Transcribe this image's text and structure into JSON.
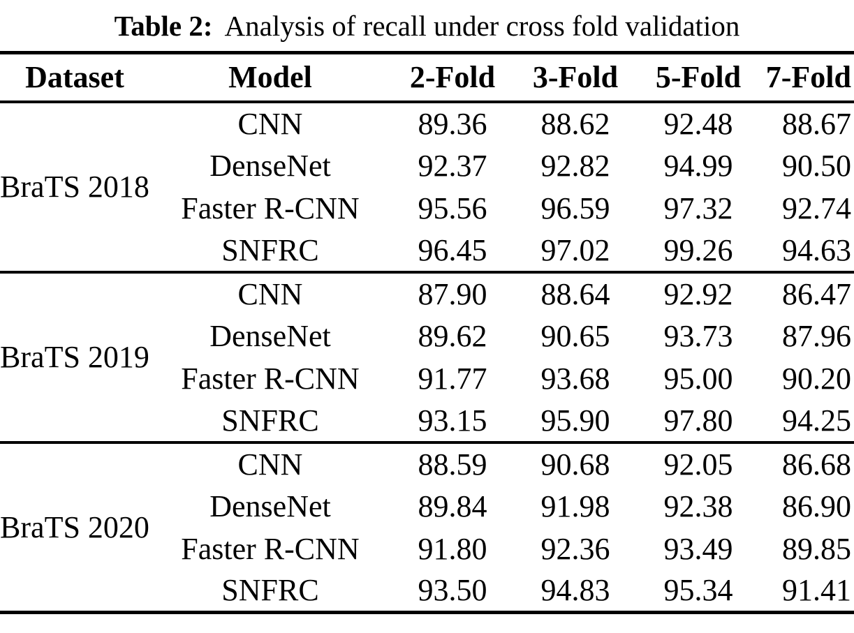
{
  "caption": {
    "label": "Table 2:",
    "text": "Analysis of recall under cross fold validation"
  },
  "chart_data": {
    "type": "table",
    "title": "Table 2: Analysis of recall under cross fold validation",
    "columns": [
      "Dataset",
      "Model",
      "2-Fold",
      "3-Fold",
      "5-Fold",
      "7-Fold"
    ],
    "groups": [
      {
        "dataset": "BraTS 2018",
        "rows": [
          {
            "model": "CNN",
            "values": [
              "89.36",
              "88.62",
              "92.48",
              "88.67"
            ]
          },
          {
            "model": "DenseNet",
            "values": [
              "92.37",
              "92.82",
              "94.99",
              "90.50"
            ]
          },
          {
            "model": "Faster R-CNN",
            "values": [
              "95.56",
              "96.59",
              "97.32",
              "92.74"
            ]
          },
          {
            "model": "SNFRC",
            "values": [
              "96.45",
              "97.02",
              "99.26",
              "94.63"
            ]
          }
        ]
      },
      {
        "dataset": "BraTS 2019",
        "rows": [
          {
            "model": "CNN",
            "values": [
              "87.90",
              "88.64",
              "92.92",
              "86.47"
            ]
          },
          {
            "model": "DenseNet",
            "values": [
              "89.62",
              "90.65",
              "93.73",
              "87.96"
            ]
          },
          {
            "model": "Faster R-CNN",
            "values": [
              "91.77",
              "93.68",
              "95.00",
              "90.20"
            ]
          },
          {
            "model": "SNFRC",
            "values": [
              "93.15",
              "95.90",
              "97.80",
              "94.25"
            ]
          }
        ]
      },
      {
        "dataset": "BraTS 2020",
        "rows": [
          {
            "model": "CNN",
            "values": [
              "88.59",
              "90.68",
              "92.05",
              "86.68"
            ]
          },
          {
            "model": "DenseNet",
            "values": [
              "89.84",
              "91.98",
              "92.38",
              "86.90"
            ]
          },
          {
            "model": "Faster R-CNN",
            "values": [
              "91.80",
              "92.36",
              "93.49",
              "89.85"
            ]
          },
          {
            "model": "SNFRC",
            "values": [
              "93.50",
              "94.83",
              "95.34",
              "91.41"
            ]
          }
        ]
      }
    ]
  }
}
